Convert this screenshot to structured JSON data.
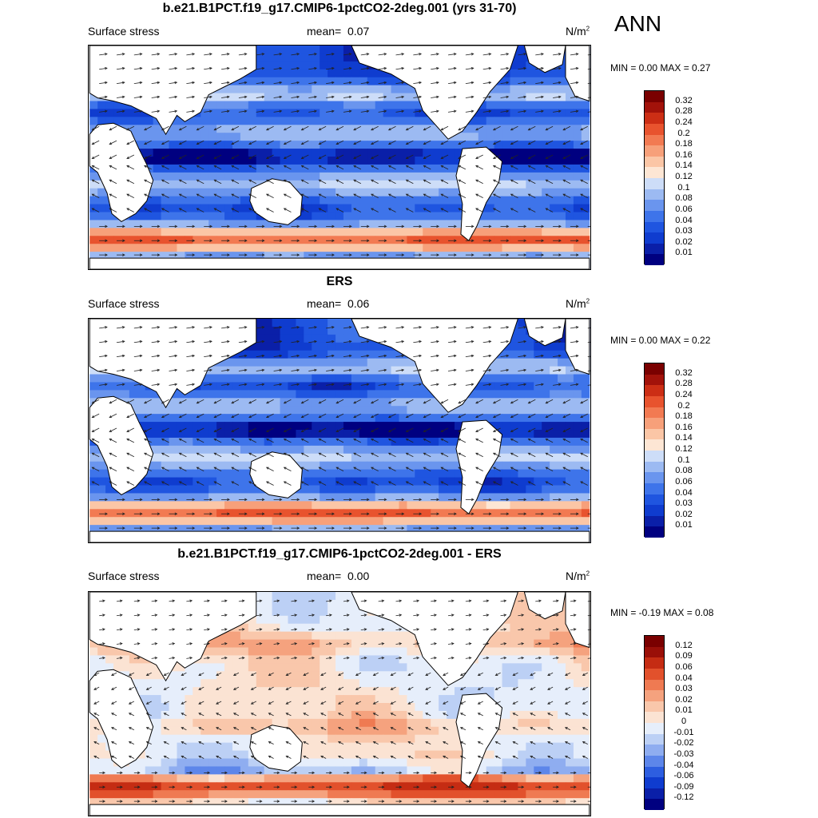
{
  "season": "ANN",
  "panels": [
    {
      "title": "b.e21.B1PCT.f19_g17.CMIP6-1pctCO2-2deg.001 (yrs 31-70)",
      "variable": "Surface stress",
      "mean_label": "mean=",
      "mean_value": "0.07",
      "units": "N/m",
      "units_sup": "2",
      "minmax": "MIN =   0.00 MAX =   0.27",
      "colorbar": [
        "0.32",
        "0.28",
        "0.24",
        "0.2",
        "0.18",
        "0.16",
        "0.14",
        "0.12",
        "0.1",
        "0.08",
        "0.06",
        "0.04",
        "0.03",
        "0.02",
        "0.01"
      ]
    },
    {
      "title": "ERS",
      "variable": "Surface stress",
      "mean_label": "mean=",
      "mean_value": "0.06",
      "units": "N/m",
      "units_sup": "2",
      "minmax": "MIN =   0.00 MAX =   0.22",
      "colorbar": [
        "0.32",
        "0.28",
        "0.24",
        "0.2",
        "0.18",
        "0.16",
        "0.14",
        "0.12",
        "0.1",
        "0.08",
        "0.06",
        "0.04",
        "0.03",
        "0.02",
        "0.01"
      ]
    },
    {
      "title": "b.e21.B1PCT.f19_g17.CMIP6-1pctCO2-2deg.001 - ERS",
      "variable": "Surface stress",
      "mean_label": "mean=",
      "mean_value": "0.00",
      "units": "N/m",
      "units_sup": "2",
      "minmax": "MIN =  -0.19 MAX =   0.08",
      "colorbar": [
        "0.12",
        "0.09",
        "0.06",
        "0.04",
        "0.03",
        "0.02",
        "0.01",
        "0",
        "-0.01",
        "-0.02",
        "-0.03",
        "-0.04",
        "-0.06",
        "-0.09",
        "-0.12"
      ]
    }
  ],
  "colors": {
    "mag_scale": [
      "#000080",
      "#0a1fa8",
      "#0f3ccf",
      "#1f55e0",
      "#3e74ea",
      "#6a95ee",
      "#9cbaf2",
      "#cdddf8",
      "#fde6d4",
      "#fbc6a6",
      "#f7a07a",
      "#f27a52",
      "#e8532e",
      "#cc2e15",
      "#a2120a",
      "#7a0000"
    ],
    "diff_scale": [
      "#000080",
      "#0a1fa8",
      "#0f3ccf",
      "#2d5ee0",
      "#5d86ea",
      "#8fadf0",
      "#bcd0f5",
      "#e6eefb",
      "#fbe3d3",
      "#f9c7ab",
      "#f5a27e",
      "#ef7a52",
      "#e2512c",
      "#c52c13",
      "#9a0f08",
      "#7a0000"
    ],
    "land": "#ffffff",
    "coast": "#000000"
  }
}
